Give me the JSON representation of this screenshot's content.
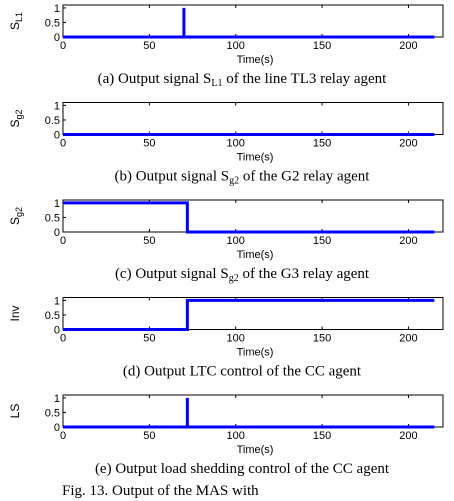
{
  "chart_data": [
    {
      "type": "line",
      "ylabel": {
        "main": "S",
        "sub": "L1"
      },
      "xlabel": "Time(s)",
      "caption": {
        "pre": "(a) Output signal S",
        "sub": "L1",
        "post": " of the line TL3 relay agent"
      },
      "xlim": [
        0,
        220
      ],
      "xticks": [
        0,
        50,
        100,
        150,
        200
      ],
      "ylim": [
        0,
        1.1
      ],
      "yticks": [
        0,
        0.5,
        1
      ],
      "series": [
        {
          "color": "#0000ff",
          "x": [
            0,
            70,
            70,
            70,
            215
          ],
          "values": [
            0,
            0,
            1,
            0,
            0
          ]
        }
      ]
    },
    {
      "type": "line",
      "ylabel": {
        "main": "S",
        "sub": "g2"
      },
      "xlabel": "Time(s)",
      "caption": {
        "pre": "(b) Output signal S",
        "sub": "g2",
        "post": " of the G2      relay agent"
      },
      "xlim": [
        0,
        220
      ],
      "xticks": [
        0,
        50,
        100,
        150,
        200
      ],
      "ylim": [
        0,
        1.1
      ],
      "yticks": [
        0,
        0.5,
        1
      ],
      "series": [
        {
          "color": "#0000ff",
          "x": [
            0,
            215
          ],
          "values": [
            0,
            0
          ]
        }
      ]
    },
    {
      "type": "line",
      "ylabel": {
        "main": "S",
        "sub": "g2"
      },
      "xlabel": "Time(s)",
      "caption": {
        "pre": "(c) Output signal S",
        "sub": "g2",
        "post": " of the G3      relay agent"
      },
      "xlim": [
        0,
        220
      ],
      "xticks": [
        0,
        50,
        100,
        150,
        200
      ],
      "ylim": [
        0,
        1.1
      ],
      "yticks": [
        0,
        0.5,
        1
      ],
      "series": [
        {
          "color": "#0000ff",
          "x": [
            0,
            72,
            72,
            215
          ],
          "values": [
            1,
            1,
            0,
            0
          ]
        }
      ]
    },
    {
      "type": "line",
      "ylabel": {
        "main": "Inv"
      },
      "xlabel": "Time(s)",
      "caption": {
        "pre": "(d) Output LTC control of the CC agent"
      },
      "xlim": [
        0,
        220
      ],
      "xticks": [
        0,
        50,
        100,
        150,
        200
      ],
      "ylim": [
        0,
        1.1
      ],
      "yticks": [
        0,
        0.5,
        1
      ],
      "series": [
        {
          "color": "#0000ff",
          "x": [
            0,
            72,
            72,
            215
          ],
          "values": [
            0,
            0,
            1,
            1
          ]
        }
      ]
    },
    {
      "type": "line",
      "ylabel": {
        "main": "LS"
      },
      "xlabel": "Time(s)",
      "caption": {
        "pre": "(e) Output load shedding control of the CC agent"
      },
      "xlim": [
        0,
        220
      ],
      "xticks": [
        0,
        50,
        100,
        150,
        200
      ],
      "ylim": [
        0,
        1.1
      ],
      "yticks": [
        0,
        0.5,
        1
      ],
      "series": [
        {
          "color": "#0000ff",
          "x": [
            0,
            72,
            72,
            72,
            215
          ],
          "values": [
            0,
            0,
            1,
            0,
            0
          ]
        }
      ]
    }
  ],
  "figure_caption": "Fig. 13. Output of the MAS with"
}
